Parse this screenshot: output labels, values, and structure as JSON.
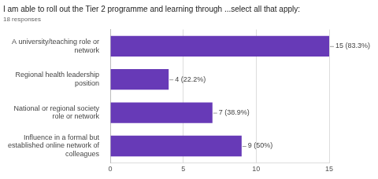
{
  "chart_data": {
    "type": "bar",
    "orientation": "horizontal",
    "title": "I am able to roll out the Tier 2 programme and learning through ...select all that apply:",
    "subtitle": "18 responses",
    "categories": [
      "A university/teaching role or network",
      "Regional health leadership position",
      "National or regional society role or network",
      "Influence in a formal but established online network of colleagues"
    ],
    "values": [
      15,
      4,
      7,
      9
    ],
    "value_labels": [
      "15 (83.3%)",
      "4 (22.2%)",
      "7 (38.9%)",
      "9 (50%)"
    ],
    "data_labels": true,
    "color": "#673ab7",
    "xlim": [
      0,
      15
    ],
    "xticks": [
      0,
      5,
      10,
      15
    ],
    "grid": true
  }
}
